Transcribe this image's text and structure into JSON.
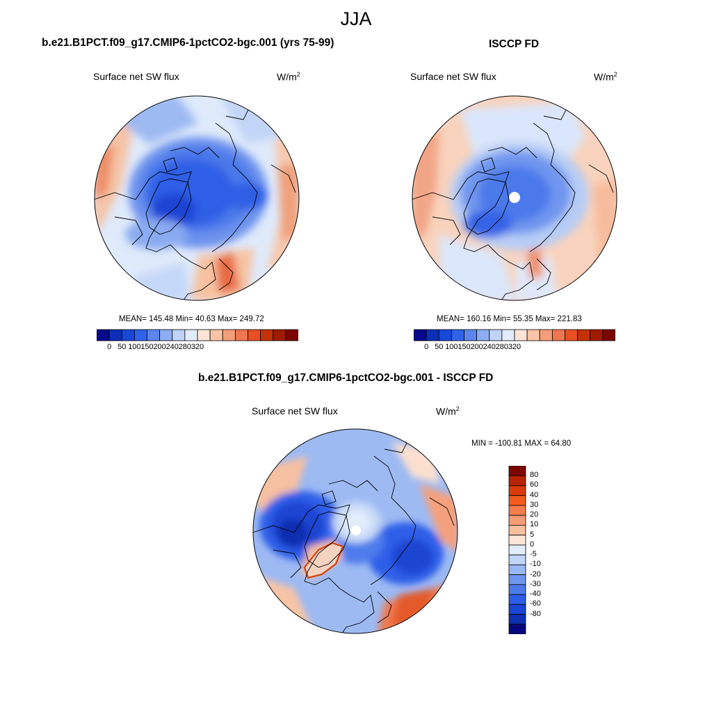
{
  "figure": {
    "season": "JJA"
  },
  "panels": {
    "model": {
      "title": "b.e21.B1PCT.f09_g17.CMIP6-1pctCO2-bgc.001 (yrs 75-99)",
      "variable": "Surface net SW flux",
      "units_base": "W/m",
      "units_exp": "2",
      "stats": "MEAN= 145.48  Min=  40.63  Max= 249.72"
    },
    "obs": {
      "title": "ISCCP FD",
      "variable": "Surface net SW flux",
      "units_base": "W/m",
      "units_exp": "2",
      "stats": "MEAN= 160.16  Min=  55.35  Max= 221.83"
    },
    "diff": {
      "title": "b.e21.B1PCT.f09_g17.CMIP6-1pctCO2-bgc.001 - ISCCP FD",
      "variable": "Surface net SW flux",
      "units_base": "W/m",
      "units_exp": "2",
      "stats": "MIN = -100.81 MAX =  64.80"
    }
  },
  "colorbars": {
    "abs": {
      "colors": [
        "#08088a",
        "#0c2fb8",
        "#1848d8",
        "#2f63ea",
        "#5c86ee",
        "#8dadf2",
        "#bfd3f7",
        "#e2ecfb",
        "#fde4d6",
        "#f8c3a6",
        "#f49f7a",
        "#ef7650",
        "#e84f22",
        "#c43208",
        "#a01c00",
        "#7c0600"
      ],
      "tick_labels": [
        "0",
        "50",
        "100",
        "150",
        "200",
        "240",
        "280",
        "320"
      ]
    },
    "diff": {
      "colors": [
        "#7c0600",
        "#b82400",
        "#d93b08",
        "#f25a1e",
        "#f47d4e",
        "#f49c74",
        "#f8bf9f",
        "#fde6d8",
        "#e2ecfb",
        "#c0d4f7",
        "#98b7f3",
        "#6f96ef",
        "#4d7bec",
        "#2d5ee8",
        "#1a44d2",
        "#0e2fb0",
        "#07077d"
      ],
      "tick_labels": [
        "80",
        "60",
        "40",
        "30",
        "20",
        "10",
        "5",
        "0",
        "-5",
        "-10",
        "-20",
        "-30",
        "-40",
        "-60",
        "-80"
      ]
    }
  }
}
